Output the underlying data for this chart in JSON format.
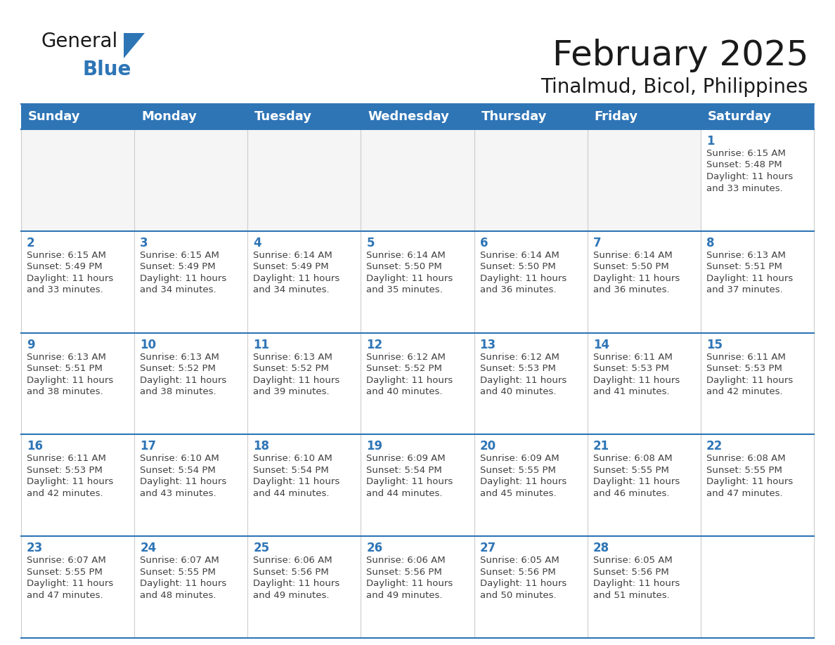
{
  "title": "February 2025",
  "subtitle": "Tinalmud, Bicol, Philippines",
  "header_bg": "#2E75B6",
  "header_text_color": "#FFFFFF",
  "cell_bg": "#FFFFFF",
  "row_border_color": "#2E75B6",
  "col_border_color": "#CCCCCC",
  "day_number_color": "#2E75B6",
  "info_text_color": "#404040",
  "days_of_week": [
    "Sunday",
    "Monday",
    "Tuesday",
    "Wednesday",
    "Thursday",
    "Friday",
    "Saturday"
  ],
  "weeks": [
    [
      {
        "day": "",
        "info": ""
      },
      {
        "day": "",
        "info": ""
      },
      {
        "day": "",
        "info": ""
      },
      {
        "day": "",
        "info": ""
      },
      {
        "day": "",
        "info": ""
      },
      {
        "day": "",
        "info": ""
      },
      {
        "day": "1",
        "info": "Sunrise: 6:15 AM\nSunset: 5:48 PM\nDaylight: 11 hours\nand 33 minutes."
      }
    ],
    [
      {
        "day": "2",
        "info": "Sunrise: 6:15 AM\nSunset: 5:49 PM\nDaylight: 11 hours\nand 33 minutes."
      },
      {
        "day": "3",
        "info": "Sunrise: 6:15 AM\nSunset: 5:49 PM\nDaylight: 11 hours\nand 34 minutes."
      },
      {
        "day": "4",
        "info": "Sunrise: 6:14 AM\nSunset: 5:49 PM\nDaylight: 11 hours\nand 34 minutes."
      },
      {
        "day": "5",
        "info": "Sunrise: 6:14 AM\nSunset: 5:50 PM\nDaylight: 11 hours\nand 35 minutes."
      },
      {
        "day": "6",
        "info": "Sunrise: 6:14 AM\nSunset: 5:50 PM\nDaylight: 11 hours\nand 36 minutes."
      },
      {
        "day": "7",
        "info": "Sunrise: 6:14 AM\nSunset: 5:50 PM\nDaylight: 11 hours\nand 36 minutes."
      },
      {
        "day": "8",
        "info": "Sunrise: 6:13 AM\nSunset: 5:51 PM\nDaylight: 11 hours\nand 37 minutes."
      }
    ],
    [
      {
        "day": "9",
        "info": "Sunrise: 6:13 AM\nSunset: 5:51 PM\nDaylight: 11 hours\nand 38 minutes."
      },
      {
        "day": "10",
        "info": "Sunrise: 6:13 AM\nSunset: 5:52 PM\nDaylight: 11 hours\nand 38 minutes."
      },
      {
        "day": "11",
        "info": "Sunrise: 6:13 AM\nSunset: 5:52 PM\nDaylight: 11 hours\nand 39 minutes."
      },
      {
        "day": "12",
        "info": "Sunrise: 6:12 AM\nSunset: 5:52 PM\nDaylight: 11 hours\nand 40 minutes."
      },
      {
        "day": "13",
        "info": "Sunrise: 6:12 AM\nSunset: 5:53 PM\nDaylight: 11 hours\nand 40 minutes."
      },
      {
        "day": "14",
        "info": "Sunrise: 6:11 AM\nSunset: 5:53 PM\nDaylight: 11 hours\nand 41 minutes."
      },
      {
        "day": "15",
        "info": "Sunrise: 6:11 AM\nSunset: 5:53 PM\nDaylight: 11 hours\nand 42 minutes."
      }
    ],
    [
      {
        "day": "16",
        "info": "Sunrise: 6:11 AM\nSunset: 5:53 PM\nDaylight: 11 hours\nand 42 minutes."
      },
      {
        "day": "17",
        "info": "Sunrise: 6:10 AM\nSunset: 5:54 PM\nDaylight: 11 hours\nand 43 minutes."
      },
      {
        "day": "18",
        "info": "Sunrise: 6:10 AM\nSunset: 5:54 PM\nDaylight: 11 hours\nand 44 minutes."
      },
      {
        "day": "19",
        "info": "Sunrise: 6:09 AM\nSunset: 5:54 PM\nDaylight: 11 hours\nand 44 minutes."
      },
      {
        "day": "20",
        "info": "Sunrise: 6:09 AM\nSunset: 5:55 PM\nDaylight: 11 hours\nand 45 minutes."
      },
      {
        "day": "21",
        "info": "Sunrise: 6:08 AM\nSunset: 5:55 PM\nDaylight: 11 hours\nand 46 minutes."
      },
      {
        "day": "22",
        "info": "Sunrise: 6:08 AM\nSunset: 5:55 PM\nDaylight: 11 hours\nand 47 minutes."
      }
    ],
    [
      {
        "day": "23",
        "info": "Sunrise: 6:07 AM\nSunset: 5:55 PM\nDaylight: 11 hours\nand 47 minutes."
      },
      {
        "day": "24",
        "info": "Sunrise: 6:07 AM\nSunset: 5:55 PM\nDaylight: 11 hours\nand 48 minutes."
      },
      {
        "day": "25",
        "info": "Sunrise: 6:06 AM\nSunset: 5:56 PM\nDaylight: 11 hours\nand 49 minutes."
      },
      {
        "day": "26",
        "info": "Sunrise: 6:06 AM\nSunset: 5:56 PM\nDaylight: 11 hours\nand 49 minutes."
      },
      {
        "day": "27",
        "info": "Sunrise: 6:05 AM\nSunset: 5:56 PM\nDaylight: 11 hours\nand 50 minutes."
      },
      {
        "day": "28",
        "info": "Sunrise: 6:05 AM\nSunset: 5:56 PM\nDaylight: 11 hours\nand 51 minutes."
      },
      {
        "day": "",
        "info": ""
      }
    ]
  ],
  "logo_general_color": "#1a1a1a",
  "logo_blue_color": "#2E75B6",
  "title_fontsize": 36,
  "subtitle_fontsize": 20,
  "header_fontsize": 13,
  "day_number_fontsize": 12,
  "info_fontsize": 9.5
}
